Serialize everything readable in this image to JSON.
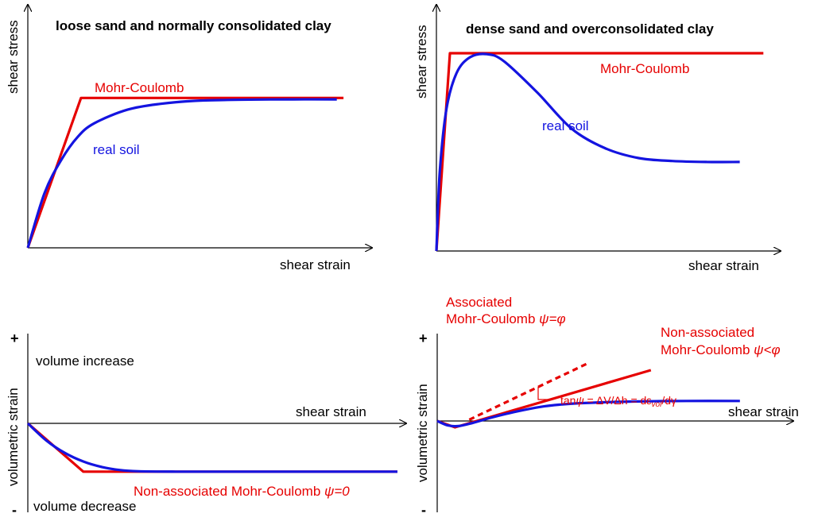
{
  "chart_data": [
    {
      "type": "line",
      "title": "loose sand and normally consolidated clay",
      "xlabel": "shear strain",
      "ylabel": "shear stress",
      "series": [
        {
          "name": "Mohr-Coulomb",
          "color": "#e60000",
          "x": [
            0,
            0.16,
            0.95
          ],
          "y": [
            0,
            0.77,
            0.77
          ]
        },
        {
          "name": "real soil",
          "color": "#1414e0",
          "x": [
            0,
            0.05,
            0.1,
            0.15,
            0.2,
            0.3,
            0.4,
            0.5,
            0.6,
            0.7,
            0.8,
            0.93
          ],
          "y": [
            0,
            0.28,
            0.45,
            0.57,
            0.64,
            0.71,
            0.74,
            0.755,
            0.76,
            0.762,
            0.763,
            0.763
          ]
        }
      ]
    },
    {
      "type": "line",
      "title": "dense sand and overconsolidated clay",
      "xlabel": "shear strain",
      "ylabel": "shear stress",
      "series": [
        {
          "name": "Mohr-Coulomb",
          "color": "#e60000",
          "x": [
            0,
            0.04,
            0.97
          ],
          "y": [
            0,
            1.0,
            1.0
          ]
        },
        {
          "name": "real soil",
          "color": "#1414e0",
          "x": [
            0,
            0.01,
            0.03,
            0.06,
            0.1,
            0.15,
            0.2,
            0.3,
            0.4,
            0.5,
            0.6,
            0.7,
            0.8,
            0.9
          ],
          "y": [
            0,
            0.4,
            0.72,
            0.9,
            0.98,
            0.995,
            0.96,
            0.8,
            0.62,
            0.52,
            0.47,
            0.455,
            0.45,
            0.45
          ]
        }
      ]
    },
    {
      "type": "line",
      "title": "",
      "xlabel": "shear strain",
      "ylabel": "volumetric strain",
      "plus_label": "+",
      "minus_label": "-",
      "increase_label": "volume increase",
      "decrease_label": "volume decrease",
      "series": [
        {
          "name": "Non-associated Mohr-Coulomb ψ=0",
          "color": "#e60000",
          "x": [
            0,
            0.15,
            1.0
          ],
          "y": [
            0,
            -0.62,
            -0.62
          ]
        },
        {
          "name": "real soil",
          "color": "#1414e0",
          "x": [
            0,
            0.05,
            0.1,
            0.15,
            0.2,
            0.25,
            0.3,
            0.4,
            0.5,
            0.6,
            1.0
          ],
          "y": [
            0,
            -0.22,
            -0.38,
            -0.49,
            -0.56,
            -0.6,
            -0.615,
            -0.62,
            -0.62,
            -0.62,
            -0.62
          ]
        }
      ]
    },
    {
      "type": "line",
      "title": "",
      "xlabel": "shear strain",
      "ylabel": "volumetric strain",
      "plus_label": "+",
      "minus_label": "-",
      "series": [
        {
          "name": "Non-associated Mohr-Coulomb ψ<φ",
          "color": "#e60000",
          "x": [
            0,
            0.05,
            0.6
          ],
          "y": [
            0,
            -0.1,
            0.8
          ]
        },
        {
          "name": "Associated Mohr-Coulomb ψ=φ",
          "color": "#e60000",
          "style": "dashed",
          "x": [
            0.09,
            0.42
          ],
          "y": [
            0.02,
            0.9
          ]
        },
        {
          "name": "real soil",
          "color": "#1414e0",
          "x": [
            0,
            0.03,
            0.06,
            0.1,
            0.15,
            0.2,
            0.25,
            0.3,
            0.35,
            0.4,
            0.5,
            0.6,
            0.7,
            0.85
          ],
          "y": [
            0,
            -0.07,
            -0.08,
            -0.03,
            0.05,
            0.12,
            0.18,
            0.23,
            0.26,
            0.28,
            0.3,
            0.31,
            0.315,
            0.315
          ]
        }
      ]
    }
  ],
  "labels": {
    "p1_mc": "Mohr-Coulomb",
    "p1_real": "real soil",
    "p2_mc": "Mohr-Coulomb",
    "p2_real": "real soil",
    "p3_nonassoc": "Non-associated Mohr-Coulomb ",
    "p3_psi": "ψ=0",
    "p4_assoc_line1": "Associated",
    "p4_assoc_line2": "Mohr-Coulomb ",
    "p4_assoc_psi": "ψ=φ",
    "p4_nonassoc_line1": "Non-associated",
    "p4_nonassoc_line2": "Mohr-Coulomb ",
    "p4_nonassoc_psi": "ψ<φ",
    "p4_tan": "tan",
    "p4_psi": "ψ",
    "p4_eq1": " = ΔV/Δh = dε",
    "p4_vol": "vol",
    "p4_eq2": "/dγ"
  }
}
